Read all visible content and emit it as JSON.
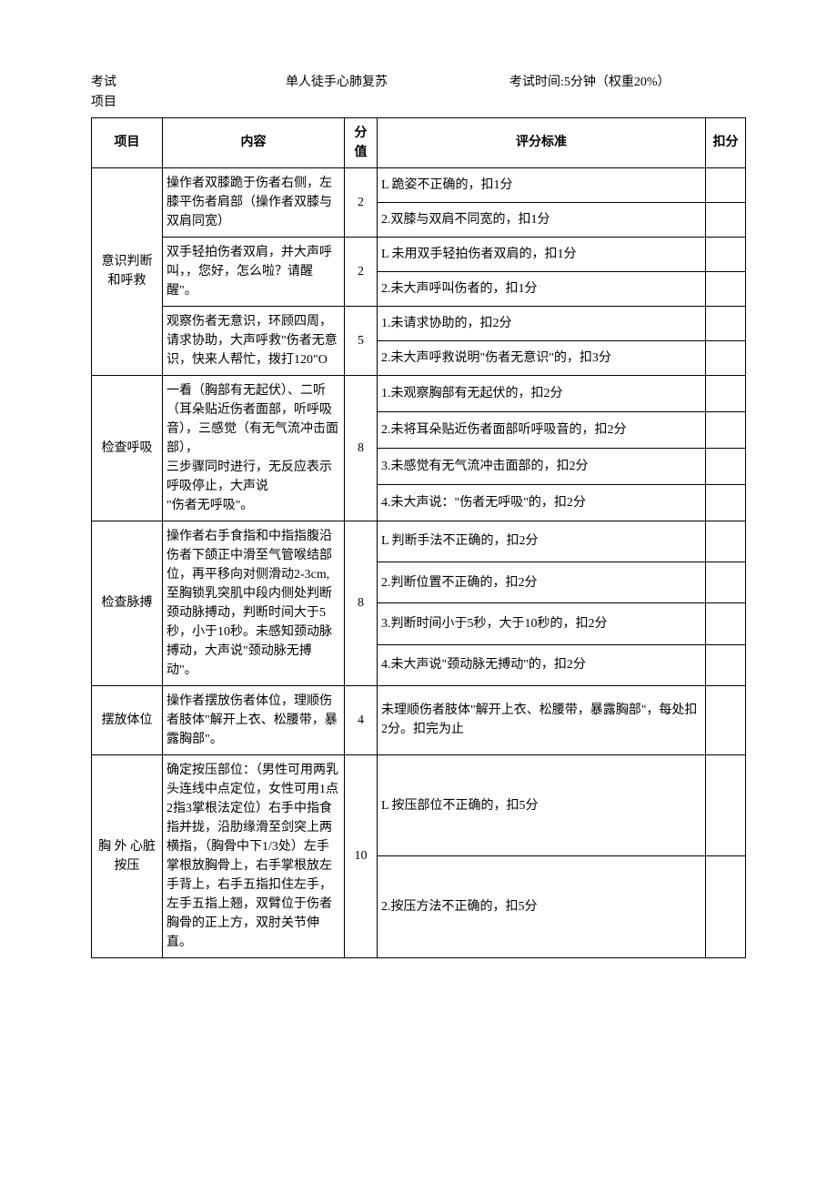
{
  "header": {
    "exam_label_1": "考试",
    "exam_label_2": "项目",
    "exam_name": "单人徒手心肺复苏",
    "exam_time": "考试时间:5分钟（权重20%）"
  },
  "columns": {
    "item": "项目",
    "content": "内容",
    "score": "分值",
    "criteria": "评分标准",
    "deduct": "扣分"
  },
  "rows": [
    {
      "item": "意识判断和呼救",
      "subs": [
        {
          "content": "操作者双膝跪于伤者右侧，左膝平伤者肩部（操作者双膝与双肩同宽）",
          "score": "2",
          "criteria": [
            "L 跪姿不正确的，扣1分",
            "2.双膝与双肩不同宽的，扣1分"
          ]
        },
        {
          "content": "双手轻拍伤者双肩，并大声呼叫，，您好，怎么啦？请醒醒\"。",
          "score": "2",
          "criteria": [
            "L 未用双手轻拍伤者双肩的，扣1分",
            "2.未大声呼叫伤者的，扣1分"
          ]
        },
        {
          "content": "观察伤者无意识，环顾四周，请求协助，大声呼救\"伤者无意识，快来人帮忙，拨打120\"O",
          "score": "5",
          "criteria": [
            "1.未请求协助的，扣2分",
            "2.未大声呼救说明\"伤者无意识\"的，扣3分"
          ]
        }
      ]
    },
    {
      "item": "检查呼吸",
      "subs": [
        {
          "content": "一看（胸部有无起伏）、二听（耳朵贴近伤者面部，听呼吸音），三感觉（有无气流冲击面部），\n三步骤同时进行，无反应表示呼吸停止，大声说\n\"伤者无呼吸\"。",
          "score": "8",
          "criteria": [
            "1.未观察胸部有无起伏的，扣2分",
            "2.未将耳朵贴近伤者面部听呼吸音的，扣2分",
            "3.未感觉有无气流冲击面部的，扣2分",
            "4.未大声说：\"伤者无呼吸\"的，扣2分"
          ]
        }
      ]
    },
    {
      "item": "检查脉搏",
      "subs": [
        {
          "content": "操作者右手食指和中指指腹沿伤者下颌正中滑至气管喉结部位，再平移向对侧滑动2-3cm,至胸锁乳突肌中段内侧处判断颈动脉搏动，判断时间大于5秒，小于10秒。未感知颈动脉搏动，大声说\"颈动脉无搏动\"。",
          "score": "8",
          "criteria": [
            "L 判断手法不正确的，扣2分",
            "2.判断位置不正确的，扣2分",
            "3.判断时间小于5秒，大于10秒的，扣2分",
            "4.未大声说\"颈动脉无搏动\"的，扣2分"
          ]
        }
      ]
    },
    {
      "item": "摆放体位",
      "subs": [
        {
          "content": "操作者摆放伤者体位，理顺伤者肢体\"解开上衣、松腰带，暴露胸部\"。",
          "score": "4",
          "criteria": [
            "未理顺伤者肢体\"解开上衣、松腰带，暴露胸部\"，每处扣2分。扣完为止"
          ]
        }
      ]
    },
    {
      "item": "胸 外 心脏按压",
      "subs": [
        {
          "content": "确定按压部位：（男性可用两乳头连线中点定位，女性可用1点2指3掌根法定位）右手中指食指并拢，沿肋缘滑至剑突上两横指，（胸骨中下1/3处）左手掌根放胸骨上，右手掌根放左手背上，右手五指扣住左手，左手五指上翘，双臂位于伤者胸骨的正上方，双肘关节伸直。",
          "score": "10",
          "criteria": [
            "L 按压部位不正确的，扣5分",
            "2.按压方法不正确的，扣5分"
          ]
        }
      ]
    }
  ]
}
